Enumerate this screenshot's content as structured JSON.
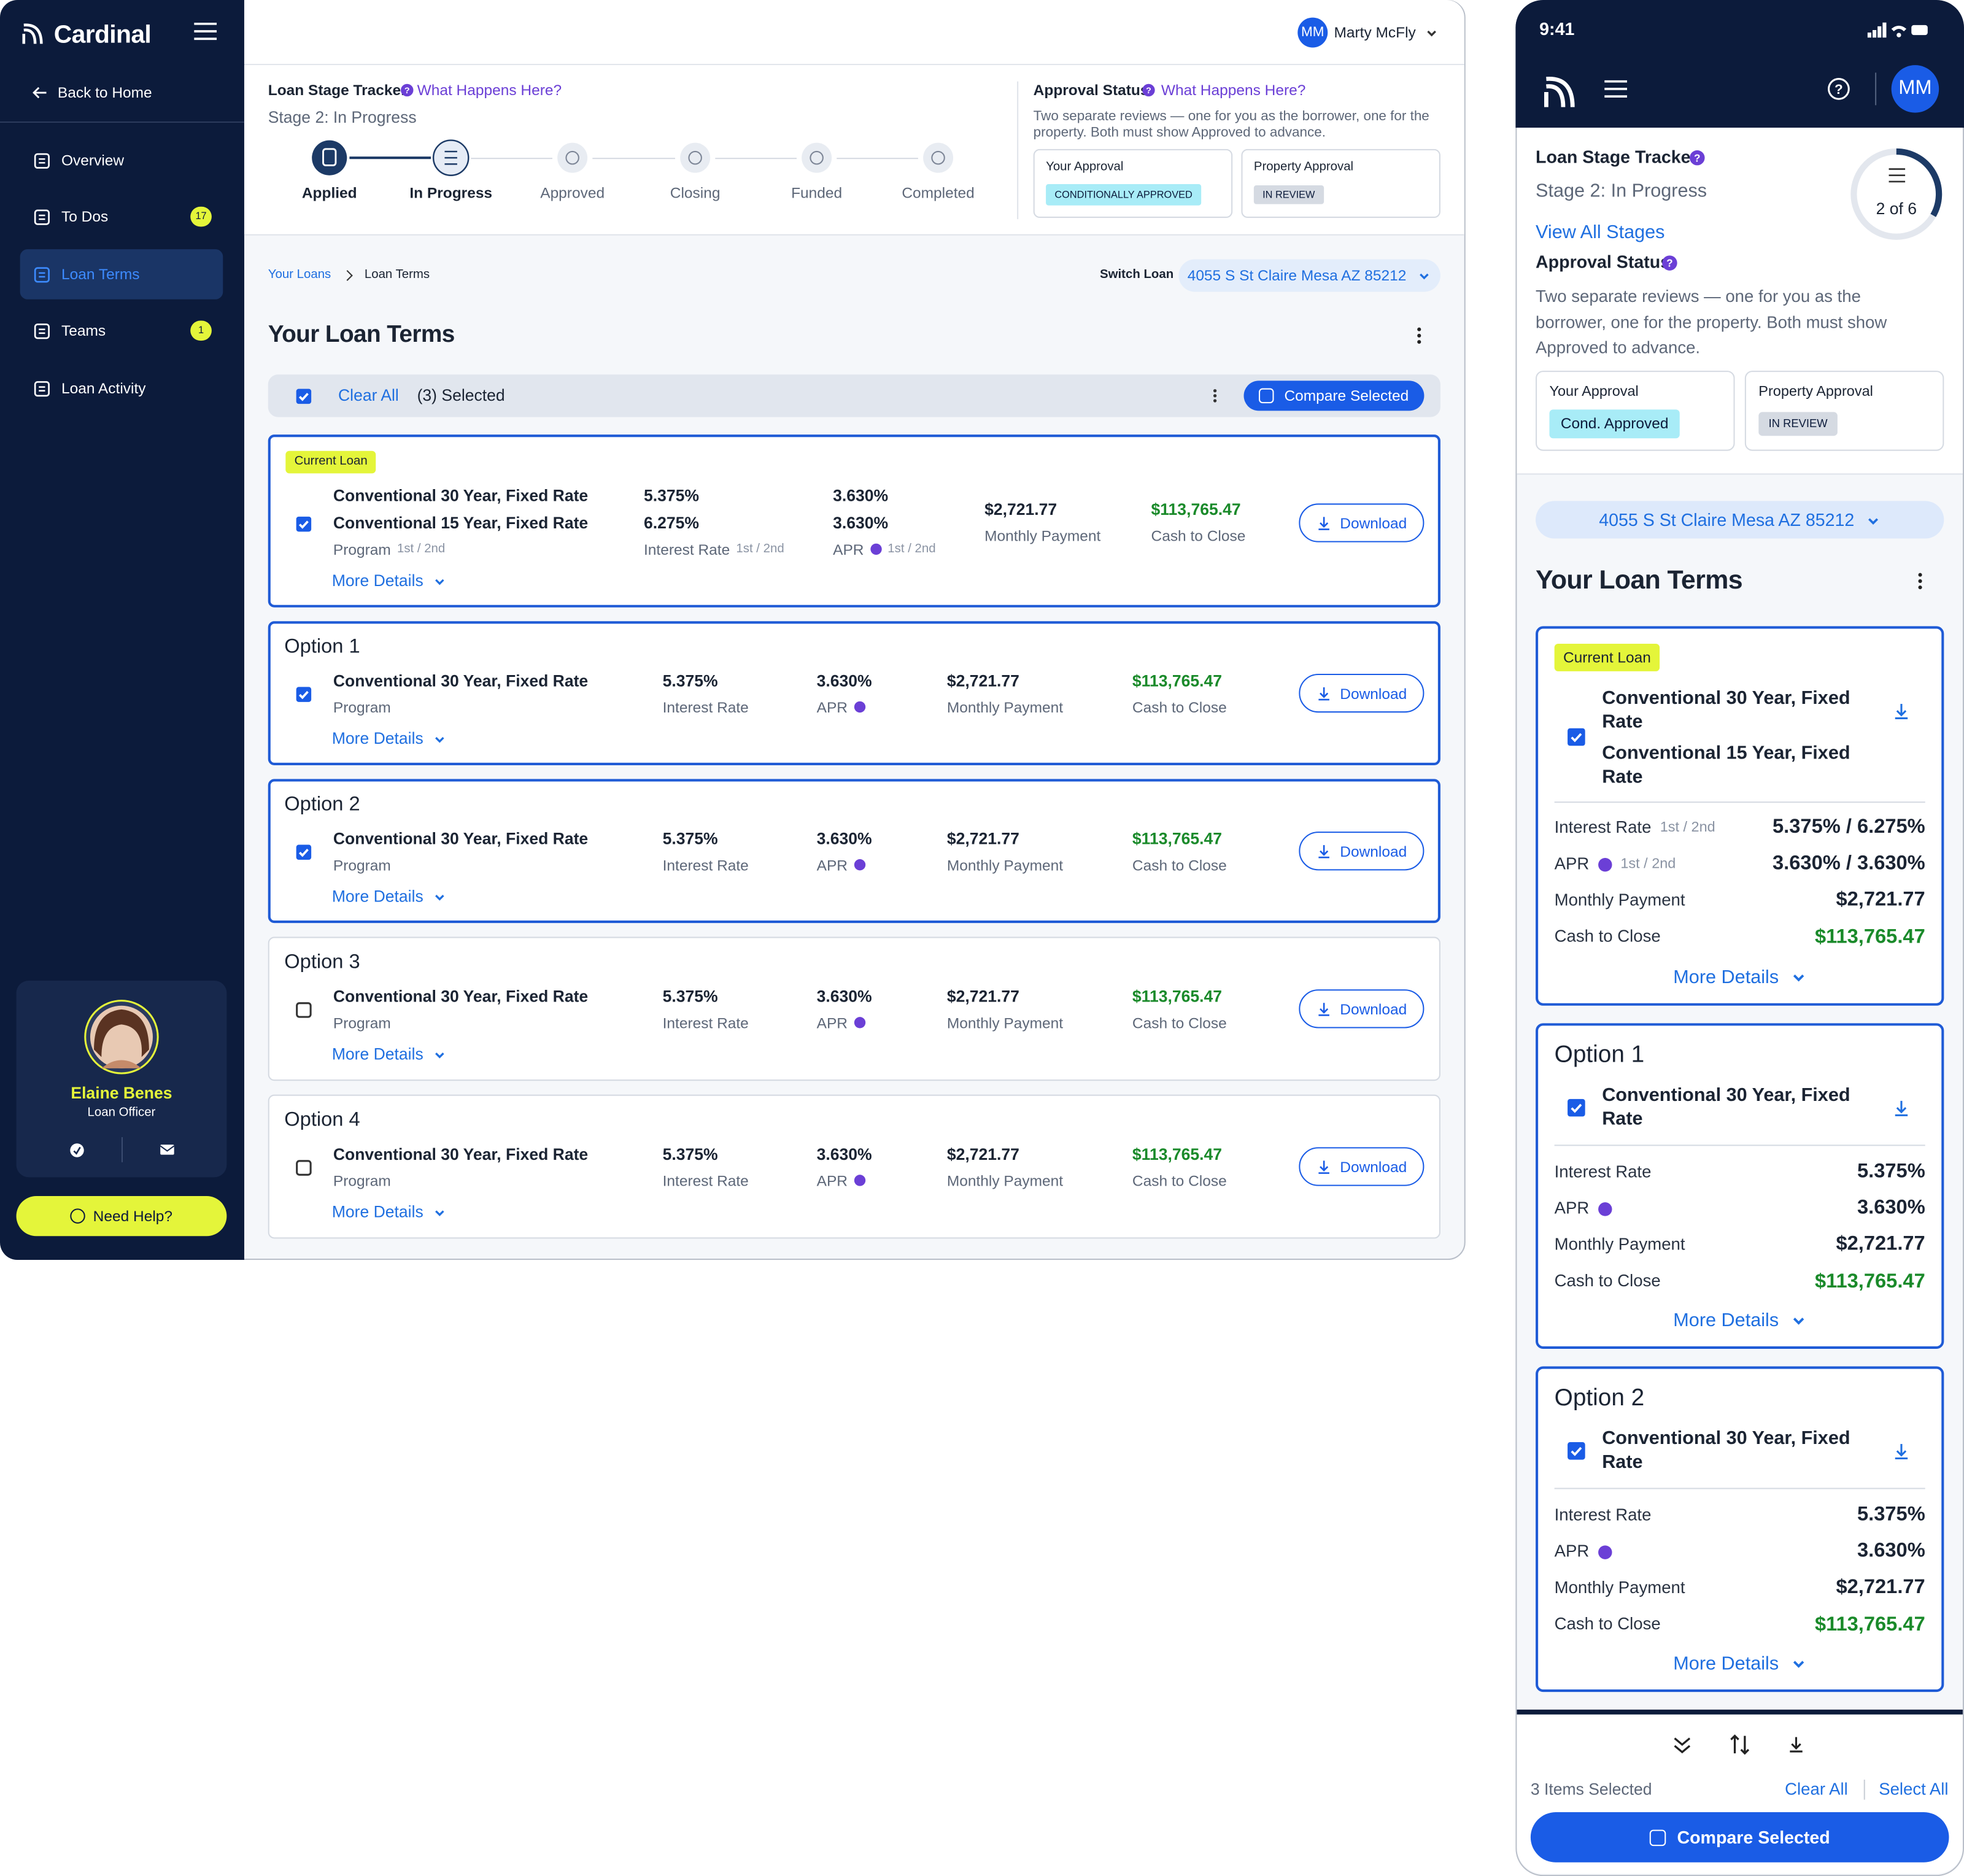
{
  "desktop": {
    "brand": "Cardinal",
    "back": "Back to Home",
    "nav": [
      {
        "label": "Overview"
      },
      {
        "label": "To Dos",
        "badge": "17"
      },
      {
        "label": "Loan Terms",
        "active": true
      },
      {
        "label": "Teams",
        "badge": "1"
      },
      {
        "label": "Loan Activity"
      }
    ],
    "officer": {
      "name": "Elaine Benes",
      "role": "Loan Officer"
    },
    "help": "Need Help?",
    "user": {
      "initials": "MM",
      "name": "Marty McFly"
    },
    "tracker": {
      "title": "Loan Stage Tracker",
      "link": "What Happens Here?",
      "stage": "Stage 2: In Progress",
      "steps": [
        "Applied",
        "In Progress",
        "Approved",
        "Closing",
        "Funded",
        "Completed"
      ]
    },
    "approval": {
      "title": "Approval Status",
      "link": "What Happens Here?",
      "desc": "Two separate reviews — one for you as the borrower, one for the property. Both must show Approved to advance.",
      "cards": [
        {
          "label": "Your Approval",
          "status": "CONDITIONALLY APPROVED"
        },
        {
          "label": "Property Approval",
          "status": "IN REVIEW"
        }
      ]
    },
    "breadcrumb": [
      "Your Loans",
      "Loan Terms"
    ],
    "switch_label": "Switch Loan",
    "address": "4055 S St Claire Mesa AZ 85212",
    "heading": "Your Loan Terms",
    "toolbar": {
      "clear": "Clear All",
      "selected": "(3) Selected",
      "compare": "Compare Selected"
    },
    "labels": {
      "program": "Program",
      "rate": "Interest Rate",
      "apr": "APR",
      "payment": "Monthly Payment",
      "cash": "Cash to Close",
      "more": "More Details",
      "download": "Download"
    },
    "loans": [
      {
        "badge": "Current Loan",
        "selected": true,
        "programs": [
          "Conventional 30 Year, Fixed Rate",
          "Conventional 15 Year, Fixed Rate"
        ],
        "rates": [
          "5.375%",
          "6.275%"
        ],
        "aprs": [
          "3.630%",
          "3.630%"
        ],
        "payment": "$2,721.77",
        "cash": "$113,765.47",
        "split_label": "1st / 2nd"
      },
      {
        "title": "Option 1",
        "selected": true,
        "programs": [
          "Conventional 30 Year, Fixed Rate"
        ],
        "rates": [
          "5.375%"
        ],
        "aprs": [
          "3.630%"
        ],
        "payment": "$2,721.77",
        "cash": "$113,765.47"
      },
      {
        "title": "Option 2",
        "selected": true,
        "programs": [
          "Conventional 30 Year, Fixed Rate"
        ],
        "rates": [
          "5.375%"
        ],
        "aprs": [
          "3.630%"
        ],
        "payment": "$2,721.77",
        "cash": "$113,765.47"
      },
      {
        "title": "Option 3",
        "selected": false,
        "programs": [
          "Conventional 30 Year, Fixed Rate"
        ],
        "rates": [
          "5.375%"
        ],
        "aprs": [
          "3.630%"
        ],
        "payment": "$2,721.77",
        "cash": "$113,765.47"
      },
      {
        "title": "Option 4",
        "selected": false,
        "programs": [
          "Conventional 30 Year, Fixed Rate"
        ],
        "rates": [
          "5.375%"
        ],
        "aprs": [
          "3.630%"
        ],
        "payment": "$2,721.77",
        "cash": "$113,765.47"
      }
    ]
  },
  "mobile": {
    "time": "9:41",
    "initials": "MM",
    "tracker": {
      "title": "Loan Stage Tracker",
      "stage": "Stage 2: In Progress",
      "progress": "2 of 6",
      "view_all": "View All Stages"
    },
    "approval": {
      "title": "Approval Status",
      "desc": "Two separate reviews — one for you as the borrower, one for the property. Both must show Approved to advance.",
      "cards": [
        {
          "label": "Your Approval",
          "status": "Cond. Approved"
        },
        {
          "label": "Property Approval",
          "status": "IN REVIEW"
        }
      ]
    },
    "address": "4055 S St Claire Mesa AZ 85212",
    "heading": "Your Loan Terms",
    "labels": {
      "rate": "Interest Rate",
      "apr": "APR",
      "payment": "Monthly Payment",
      "cash": "Cash to Close",
      "more": "More Details"
    },
    "loans": [
      {
        "badge": "Current Loan",
        "selected": true,
        "programs": [
          "Conventional 30 Year, Fixed Rate",
          "Conventional 15 Year, Fixed Rate"
        ],
        "rate": "5.375% / 6.275%",
        "apr": "3.630% / 3.630%",
        "payment": "$2,721.77",
        "cash": "$113,765.47",
        "split_label": "1st / 2nd"
      },
      {
        "title": "Option 1",
        "selected": true,
        "programs": [
          "Conventional 30 Year, Fixed Rate"
        ],
        "rate": "5.375%",
        "apr": "3.630%",
        "payment": "$2,721.77",
        "cash": "$113,765.47"
      },
      {
        "title": "Option 2",
        "selected": true,
        "programs": [
          "Conventional 30 Year, Fixed Rate"
        ],
        "rate": "5.375%",
        "apr": "3.630%",
        "payment": "$2,721.77",
        "cash": "$113,765.47"
      }
    ],
    "footer": {
      "count": "3 Items Selected",
      "clear": "Clear All",
      "select_all": "Select All",
      "compare": "Compare Selected"
    }
  }
}
